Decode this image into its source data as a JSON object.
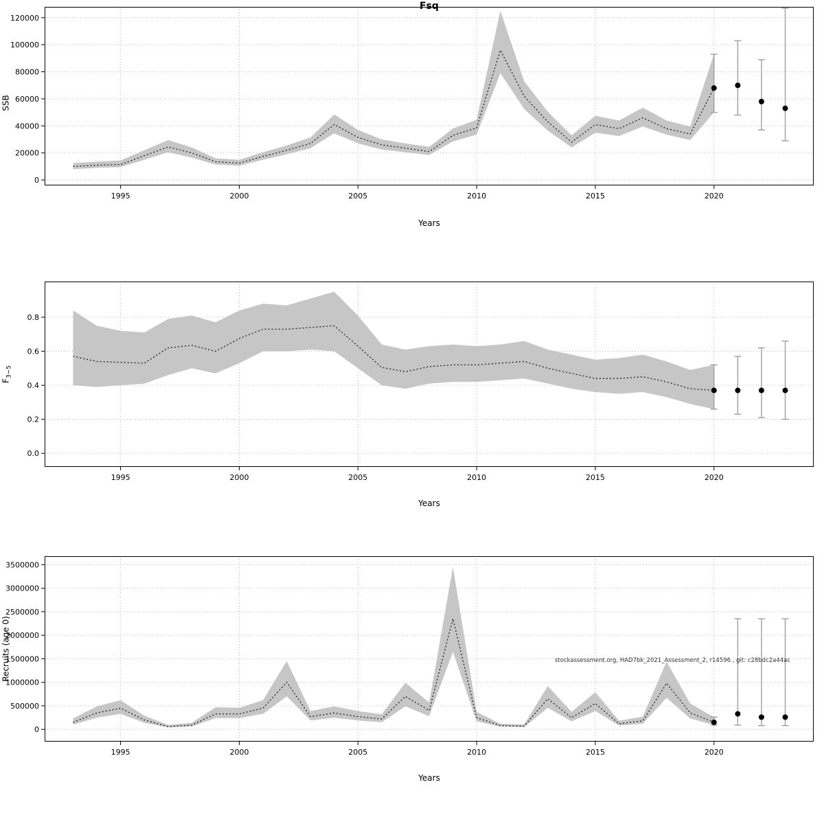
{
  "title": "Fsq",
  "colors": {
    "band": "#c6c6c6",
    "median_line": "#1a1a1a",
    "forecast_whisker": "#9e9e9e",
    "forecast_point": "#000000",
    "grid": "#b4b4b4",
    "axis": "#000000",
    "annotation": "#333333"
  },
  "chart_data": [
    {
      "type": "line",
      "name": "ssb",
      "title": "Fsq",
      "xlabel": "Years",
      "ylabel": "SSB",
      "ylabel_sub": "",
      "grid": true,
      "xlim": [
        1991.8,
        2024.2
      ],
      "ylim": [
        -4000,
        128000
      ],
      "xticks": [
        1995,
        2000,
        2005,
        2010,
        2015,
        2020
      ],
      "xtick_labels": [
        "1995",
        "2000",
        "2005",
        "2010",
        "2015",
        "2020"
      ],
      "yticks": [
        0,
        20000,
        40000,
        60000,
        80000,
        100000,
        120000
      ],
      "ytick_labels": [
        "0",
        "20000",
        "40000",
        "60000",
        "80000",
        "100000",
        "120000"
      ],
      "years": [
        1993,
        1994,
        1995,
        1996,
        1997,
        1998,
        1999,
        2000,
        2001,
        2002,
        2003,
        2004,
        2005,
        2006,
        2007,
        2008,
        2009,
        2010,
        2011,
        2012,
        2013,
        2014,
        2015,
        2016,
        2017,
        2018,
        2019,
        2020
      ],
      "median": [
        10000,
        11000,
        11500,
        18000,
        24500,
        20000,
        13500,
        12500,
        17500,
        22000,
        27000,
        41000,
        31500,
        26000,
        23500,
        21000,
        33000,
        38500,
        96000,
        62000,
        43000,
        28000,
        41000,
        38000,
        46000,
        38000,
        34000,
        68000
      ],
      "lower": [
        8000,
        9000,
        9500,
        15000,
        20500,
        16500,
        11500,
        10500,
        15000,
        19000,
        23500,
        34500,
        27000,
        22500,
        20500,
        18500,
        28500,
        33500,
        79000,
        52500,
        36500,
        24000,
        35000,
        32500,
        39500,
        33500,
        29500,
        50000
      ],
      "upper": [
        12500,
        13500,
        14500,
        22000,
        29500,
        24000,
        16000,
        15000,
        20500,
        25500,
        31500,
        48500,
        37000,
        30000,
        27000,
        24500,
        38000,
        44500,
        125000,
        73000,
        50500,
        33000,
        47500,
        44000,
        53500,
        44000,
        39500,
        93000
      ],
      "forecast": {
        "years": [
          2020,
          2021,
          2022,
          2023
        ],
        "median": [
          68000,
          70000,
          58000,
          53000
        ],
        "lower": [
          50000,
          48000,
          37000,
          29000
        ],
        "upper": [
          93000,
          103000,
          89000,
          127000
        ]
      }
    },
    {
      "type": "line",
      "name": "fishing-mortality",
      "title": "",
      "xlabel": "Years",
      "ylabel": "F",
      "ylabel_sub": "3−5",
      "grid": true,
      "xlim": [
        1991.8,
        2024.2
      ],
      "ylim": [
        -0.08,
        1.01
      ],
      "xticks": [
        1995,
        2000,
        2005,
        2010,
        2015,
        2020
      ],
      "xtick_labels": [
        "1995",
        "2000",
        "2005",
        "2010",
        "2015",
        "2020"
      ],
      "yticks": [
        0.0,
        0.2,
        0.4,
        0.6,
        0.8
      ],
      "ytick_labels": [
        "0.0",
        "0.2",
        "0.4",
        "0.6",
        "0.8"
      ],
      "years": [
        1993,
        1994,
        1995,
        1996,
        1997,
        1998,
        1999,
        2000,
        2001,
        2002,
        2003,
        2004,
        2005,
        2006,
        2007,
        2008,
        2009,
        2010,
        2011,
        2012,
        2013,
        2014,
        2015,
        2016,
        2017,
        2018,
        2019,
        2020
      ],
      "median": [
        0.57,
        0.54,
        0.535,
        0.53,
        0.62,
        0.635,
        0.6,
        0.675,
        0.73,
        0.73,
        0.74,
        0.75,
        0.63,
        0.505,
        0.48,
        0.51,
        0.52,
        0.52,
        0.53,
        0.54,
        0.5,
        0.47,
        0.44,
        0.44,
        0.45,
        0.42,
        0.38,
        0.37
      ],
      "lower": [
        0.4,
        0.39,
        0.4,
        0.41,
        0.46,
        0.5,
        0.47,
        0.53,
        0.6,
        0.6,
        0.61,
        0.6,
        0.5,
        0.4,
        0.38,
        0.41,
        0.42,
        0.42,
        0.43,
        0.44,
        0.41,
        0.38,
        0.36,
        0.35,
        0.36,
        0.33,
        0.29,
        0.26
      ],
      "upper": [
        0.84,
        0.75,
        0.72,
        0.71,
        0.79,
        0.81,
        0.77,
        0.84,
        0.88,
        0.87,
        0.91,
        0.95,
        0.81,
        0.64,
        0.61,
        0.63,
        0.64,
        0.63,
        0.64,
        0.66,
        0.61,
        0.58,
        0.55,
        0.56,
        0.58,
        0.54,
        0.49,
        0.52
      ],
      "forecast": {
        "years": [
          2020,
          2021,
          2022,
          2023
        ],
        "median": [
          0.37,
          0.37,
          0.37,
          0.37
        ],
        "lower": [
          0.26,
          0.23,
          0.21,
          0.2
        ],
        "upper": [
          0.52,
          0.57,
          0.62,
          0.66
        ]
      }
    },
    {
      "type": "line",
      "name": "recruitment",
      "title": "",
      "xlabel": "Years",
      "ylabel": "Recruits (age 0)",
      "ylabel_sub": "",
      "grid": true,
      "annotation": "stockassessment.org, HAD7bk_2021_Assessment_2, r14596 , git: c28bdc2a44ac",
      "xlim": [
        1991.8,
        2024.2
      ],
      "ylim": [
        -260000,
        3680000
      ],
      "xticks": [
        1995,
        2000,
        2005,
        2010,
        2015,
        2020
      ],
      "xtick_labels": [
        "1995",
        "2000",
        "2005",
        "2010",
        "2015",
        "2020"
      ],
      "yticks": [
        0,
        500000,
        1000000,
        1500000,
        2000000,
        2500000,
        3000000,
        3500000
      ],
      "ytick_labels": [
        "0",
        "500000",
        "1000000",
        "1500000",
        "2000000",
        "2500000",
        "3000000",
        "3500000"
      ],
      "years": [
        1993,
        1994,
        1995,
        1996,
        1997,
        1998,
        1999,
        2000,
        2001,
        2002,
        2003,
        2004,
        2005,
        2006,
        2007,
        2008,
        2009,
        2010,
        2011,
        2012,
        2013,
        2014,
        2015,
        2016,
        2017,
        2018,
        2019,
        2020
      ],
      "median": [
        150000,
        350000,
        450000,
        200000,
        60000,
        90000,
        330000,
        330000,
        450000,
        1000000,
        270000,
        350000,
        270000,
        220000,
        700000,
        400000,
        2350000,
        250000,
        80000,
        70000,
        650000,
        250000,
        550000,
        120000,
        180000,
        980000,
        350000,
        150000
      ],
      "lower": [
        100000,
        250000,
        330000,
        140000,
        40000,
        60000,
        240000,
        240000,
        330000,
        700000,
        190000,
        250000,
        190000,
        150000,
        490000,
        280000,
        1650000,
        170000,
        55000,
        45000,
        460000,
        170000,
        390000,
        80000,
        120000,
        670000,
        230000,
        90000
      ],
      "upper": [
        230000,
        490000,
        620000,
        290000,
        95000,
        140000,
        470000,
        460000,
        620000,
        1450000,
        390000,
        490000,
        390000,
        320000,
        990000,
        570000,
        3450000,
        370000,
        120000,
        105000,
        920000,
        370000,
        790000,
        185000,
        270000,
        1440000,
        550000,
        260000
      ],
      "forecast": {
        "years": [
          2020,
          2021,
          2022,
          2023
        ],
        "median": [
          150000,
          330000,
          260000,
          260000
        ],
        "lower": [
          90000,
          90000,
          80000,
          80000
        ],
        "upper": [
          260000,
          2350000,
          2350000,
          2350000
        ]
      }
    }
  ]
}
